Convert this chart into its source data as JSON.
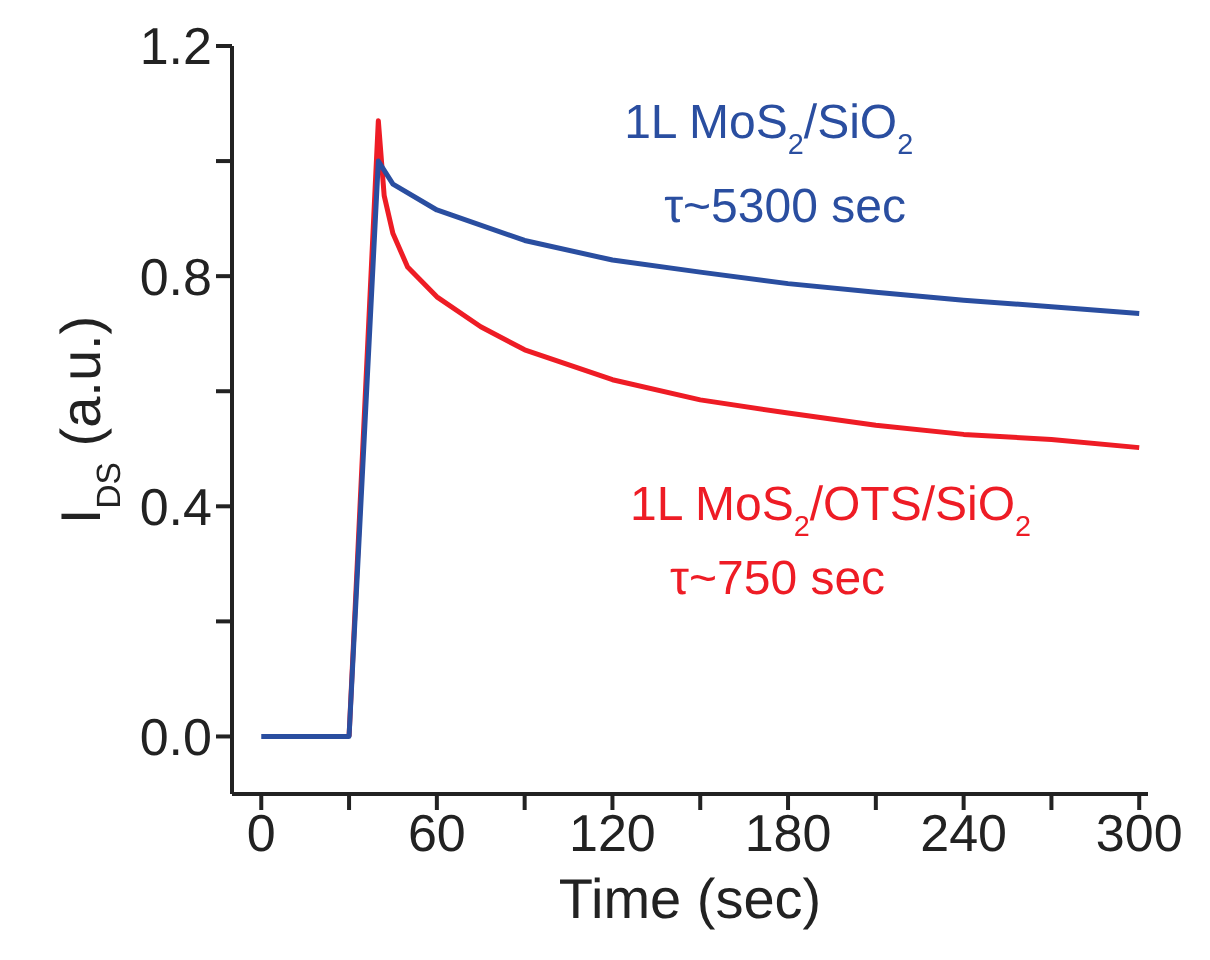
{
  "chart_data": {
    "type": "line",
    "xlabel": "Time (sec)",
    "ylabel": "I$_{DS}$ (a.u.)",
    "xlim": [
      -10,
      303
    ],
    "xticks": [
      0,
      {
        "value": 30,
        "label": null
      },
      60,
      {
        "value": 90,
        "label": null
      },
      120,
      {
        "value": 150,
        "label": null
      },
      180,
      {
        "value": 210,
        "label": null
      },
      240,
      {
        "value": 270,
        "label": null
      },
      300
    ],
    "ylim": [
      -0.1,
      1.2
    ],
    "yticks": [
      {
        "value": 0,
        "label": "0.0"
      },
      {
        "value": 0.2,
        "label": null
      },
      0.4,
      {
        "value": 0.6,
        "label": null
      },
      0.8,
      {
        "value": 1.0,
        "label": null
      },
      1.2
    ],
    "tick_labels": [
      "x",
      "y"
    ],
    "grid": false,
    "legend": false,
    "marker": "none",
    "line_style": "solid",
    "series": [
      {
        "name": "1L MoS$_{2}$/SiO$_{2}$",
        "color": "#2a4ea0",
        "x": [
          0,
          10,
          20,
          30,
          40,
          45,
          60,
          90,
          120,
          150,
          180,
          210,
          240,
          270,
          300
        ],
        "values": [
          0.0,
          0.0,
          0.0,
          0.0,
          1.0,
          0.96,
          0.915,
          0.862,
          0.828,
          0.807,
          0.787,
          0.772,
          0.758,
          0.747,
          0.735
        ]
      },
      {
        "name": "1L MoS$_{2}$/OTS/SiO$_{2}$",
        "color": "#ee1c25",
        "x": [
          30,
          40,
          42,
          45,
          50,
          60,
          75,
          90,
          120,
          150,
          180,
          210,
          240,
          270,
          300
        ],
        "values": [
          0.0,
          1.07,
          0.94,
          0.874,
          0.816,
          0.764,
          0.712,
          0.672,
          0.62,
          0.585,
          0.562,
          0.541,
          0.525,
          0.516,
          0.502
        ]
      }
    ],
    "annotations": [
      "τ~5300 sec",
      "τ~750 sec"
    ]
  }
}
